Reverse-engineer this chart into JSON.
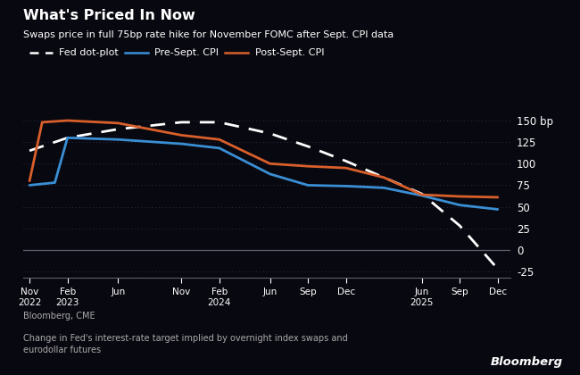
{
  "title": "What's Priced In Now",
  "subtitle": "Swaps price in full 75bp rate hike for November FOMC after Sept. CPI data",
  "source": "Bloomberg, CME",
  "note": "Change in Fed's interest-rate target implied by overnight index swaps and\neurodollar futures",
  "bloomberg_logo": "Bloomberg",
  "background_color": "#080810",
  "text_color": "#ffffff",
  "grid_color": "#303048",
  "zero_line_color": "#606070",
  "x_tick_labels": [
    "Nov\n2022",
    "Feb\n2023",
    "Jun",
    "Nov",
    "Feb\n2024",
    "Jun",
    "Sep",
    "Dec",
    "Jun\n2025",
    "Sep",
    "Dec"
  ],
  "x_tick_positions": [
    0,
    3,
    7,
    12,
    15,
    19,
    22,
    25,
    31,
    34,
    37
  ],
  "ylim": [
    -32,
    168
  ],
  "yticks": [
    -25,
    0,
    25,
    50,
    75,
    100,
    125,
    150
  ],
  "dot_plot": {
    "label": "Fed dot-plot",
    "color": "#ffffff",
    "x": [
      0,
      3,
      7,
      12,
      15,
      19,
      22,
      25,
      31,
      34,
      37
    ],
    "y": [
      115,
      130,
      140,
      148,
      148,
      135,
      120,
      103,
      65,
      28,
      -22
    ]
  },
  "pre_cpi": {
    "label": "Pre-Sept. CPI",
    "color": "#3a8fd4",
    "x": [
      0,
      2,
      3,
      7,
      12,
      15,
      19,
      22,
      25,
      28,
      31,
      34,
      37
    ],
    "y": [
      75,
      78,
      130,
      128,
      123,
      118,
      88,
      75,
      74,
      72,
      63,
      52,
      47
    ]
  },
  "post_cpi": {
    "label": "Post-Sept. CPI",
    "color": "#d95f2b",
    "x": [
      0,
      1,
      3,
      7,
      12,
      15,
      19,
      22,
      25,
      28,
      31,
      34,
      37
    ],
    "y": [
      80,
      148,
      150,
      147,
      133,
      128,
      100,
      97,
      95,
      84,
      64,
      62,
      61
    ]
  }
}
